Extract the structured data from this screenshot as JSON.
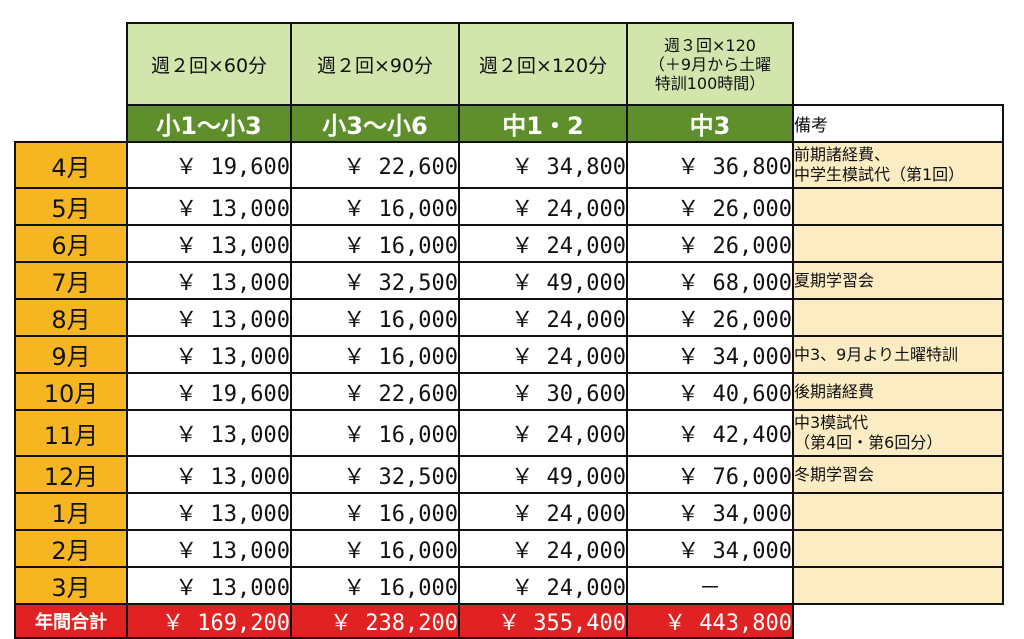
{
  "plans": [
    {
      "desc": "週２回×60分",
      "grade": "小1～小3"
    },
    {
      "desc": "週２回×90分",
      "grade": "小3～小6"
    },
    {
      "desc": "週２回×120分",
      "grade": "中1・2"
    },
    {
      "desc_lines": [
        "週３回×120",
        "（＋9月から土曜",
        "特訓100時間）"
      ],
      "grade": "中3"
    }
  ],
  "notes_header": "備考",
  "rows": [
    {
      "month": "4月",
      "fees": [
        "￥ 19,600",
        "￥ 22,600",
        "￥ 34,800",
        "￥ 36,800"
      ],
      "note_lines": [
        "前期諸経費、",
        "中学生模試代（第1回）"
      ]
    },
    {
      "month": "5月",
      "fees": [
        "￥ 13,000",
        "￥ 16,000",
        "￥ 24,000",
        "￥ 26,000"
      ],
      "note_lines": []
    },
    {
      "month": "6月",
      "fees": [
        "￥ 13,000",
        "￥ 16,000",
        "￥ 24,000",
        "￥ 26,000"
      ],
      "note_lines": []
    },
    {
      "month": "7月",
      "fees": [
        "￥ 13,000",
        "￥ 32,500",
        "￥ 49,000",
        "￥ 68,000"
      ],
      "note_lines": [
        "夏期学習会"
      ]
    },
    {
      "month": "8月",
      "fees": [
        "￥ 13,000",
        "￥ 16,000",
        "￥ 24,000",
        "￥ 26,000"
      ],
      "note_lines": []
    },
    {
      "month": "9月",
      "fees": [
        "￥ 13,000",
        "￥ 16,000",
        "￥ 24,000",
        "￥ 34,000"
      ],
      "note_lines": [
        "中3、9月より土曜特訓"
      ]
    },
    {
      "month": "10月",
      "fees": [
        "￥ 19,600",
        "￥ 22,600",
        "￥ 30,600",
        "￥ 40,600"
      ],
      "note_lines": [
        "後期諸経費"
      ]
    },
    {
      "month": "11月",
      "fees": [
        "￥ 13,000",
        "￥ 16,000",
        "￥ 24,000",
        "￥ 42,400"
      ],
      "note_lines": [
        "中3模試代",
        "（第4回・第6回分）"
      ]
    },
    {
      "month": "12月",
      "fees": [
        "￥ 13,000",
        "￥ 32,500",
        "￥ 49,000",
        "￥ 76,000"
      ],
      "note_lines": [
        "冬期学習会"
      ]
    },
    {
      "month": "1月",
      "fees": [
        "￥ 13,000",
        "￥ 16,000",
        "￥ 24,000",
        "￥ 34,000"
      ],
      "note_lines": []
    },
    {
      "month": "2月",
      "fees": [
        "￥ 13,000",
        "￥ 16,000",
        "￥ 24,000",
        "￥ 34,000"
      ],
      "note_lines": []
    },
    {
      "month": "3月",
      "fees": [
        "￥ 13,000",
        "￥ 16,000",
        "￥ 24,000",
        "－"
      ],
      "note_lines": []
    }
  ],
  "total": {
    "label": "年間合計",
    "values": [
      "￥ 169,200",
      "￥ 238,200",
      "￥ 355,400",
      "￥ 443,800"
    ]
  },
  "colors": {
    "plan_header_bg": "#d2e5ad",
    "grade_header_bg": "#5e8f2c",
    "month_bg": "#f6b622",
    "notes_bg": "#fbecc3",
    "total_bg": "#e12222"
  }
}
